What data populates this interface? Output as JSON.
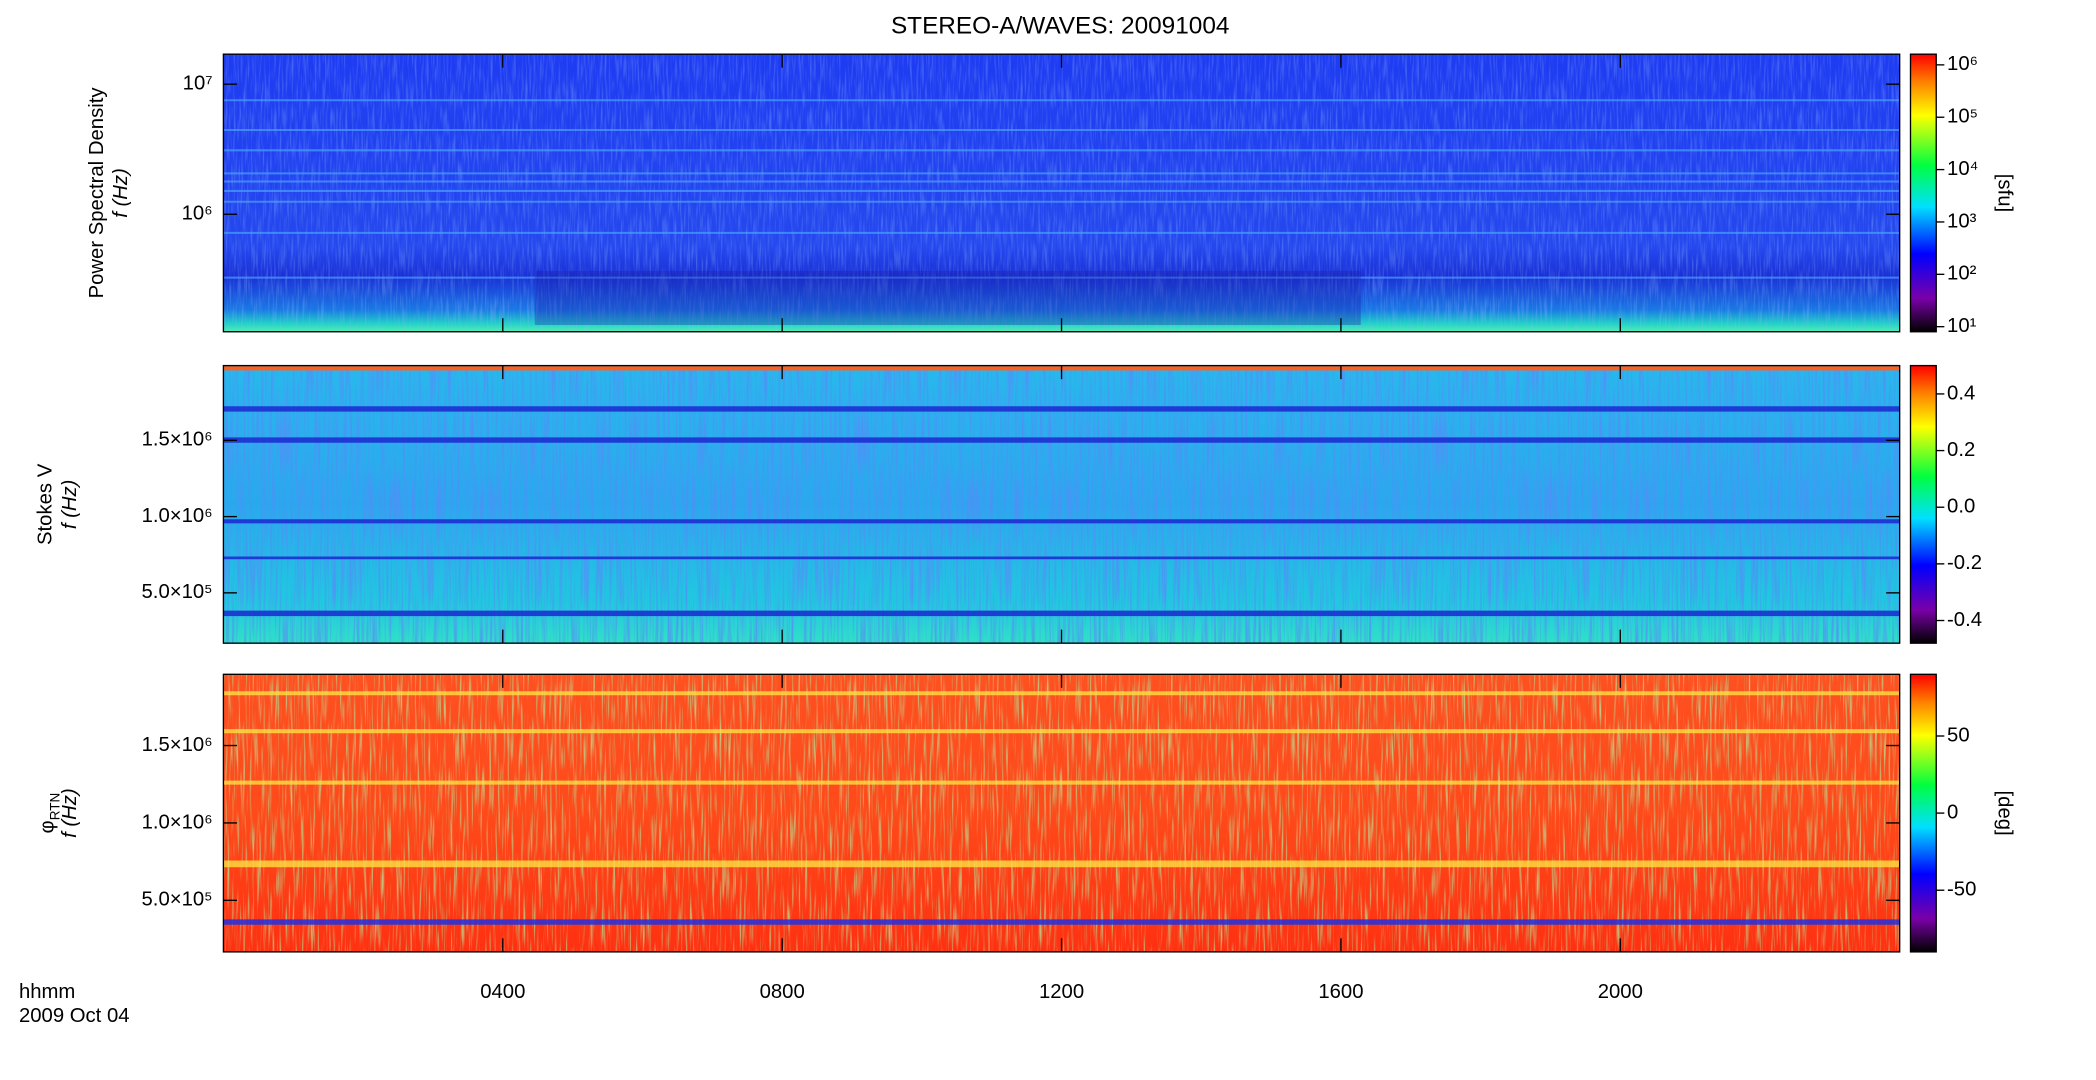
{
  "title": "STEREO-A/WAVES: 20091004",
  "chart_data": [
    {
      "type": "spectrogram",
      "ylabel": "Power Spectral Density",
      "flabel": "f (Hz)",
      "log_y": true,
      "ylim": [
        125000,
        17000000
      ],
      "yticks": [
        {
          "value": 1000000,
          "label": "10⁶"
        },
        {
          "value": 10000000,
          "label": "10⁷"
        }
      ],
      "colorbar": {
        "log": true,
        "lim": [
          8,
          1600000
        ],
        "label": "[sfu]",
        "ticks": [
          {
            "value": 10,
            "label": "10¹"
          },
          {
            "value": 100,
            "label": "10²"
          },
          {
            "value": 1000,
            "label": "10³"
          },
          {
            "value": 10000,
            "label": "10⁴"
          },
          {
            "value": 100000,
            "label": "10⁵"
          },
          {
            "value": 1000000,
            "label": "10⁶"
          }
        ]
      }
    },
    {
      "type": "spectrogram",
      "ylabel": "Stokes V",
      "flabel": "f (Hz)",
      "log_y": false,
      "ylim": [
        170000,
        1990000
      ],
      "yticks": [
        {
          "value": 500000,
          "label": "5.0×10⁵"
        },
        {
          "value": 1000000,
          "label": "1.0×10⁶"
        },
        {
          "value": 1500000,
          "label": "1.5×10⁶"
        }
      ],
      "colorbar": {
        "log": false,
        "lim": [
          -0.48,
          0.5
        ],
        "ticks": [
          -0.4,
          -0.2,
          {
            "value": 0,
            "label": "0.0"
          },
          0.2,
          0.4
        ]
      }
    },
    {
      "type": "spectrogram",
      "ylabel": "φ",
      "ylabel_sub": "RTN",
      "flabel": "f (Hz)",
      "log_y": false,
      "ylim": [
        167000,
        1960000
      ],
      "yticks": [
        {
          "value": 500000,
          "label": "5.0×10⁵"
        },
        {
          "value": 1000000,
          "label": "1.0×10⁶"
        },
        {
          "value": 1500000,
          "label": "1.5×10⁶"
        }
      ],
      "colorbar": {
        "log": false,
        "lim": [
          -90,
          90
        ],
        "label": "[deg]",
        "ticks": [
          -50,
          0,
          50
        ]
      },
      "xlabel": "hhmm",
      "date": "2009 Oct 04",
      "xlim": [
        0,
        24
      ],
      "xticks": [
        {
          "value": 4,
          "label": "0400"
        },
        {
          "value": 8,
          "label": "0800"
        },
        {
          "value": 12,
          "label": "1200"
        },
        {
          "value": 16,
          "label": "1600"
        },
        {
          "value": 20,
          "label": "2000"
        }
      ]
    }
  ]
}
